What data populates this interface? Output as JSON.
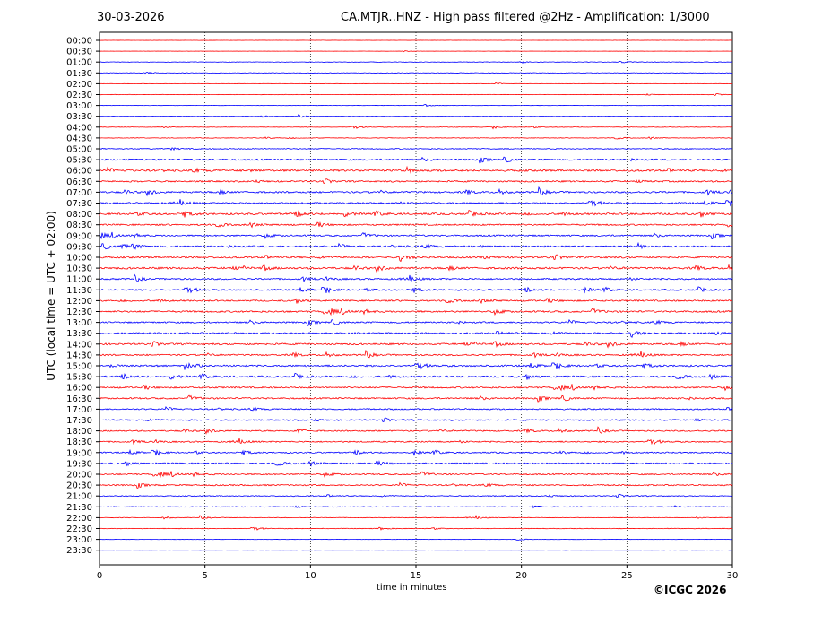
{
  "chart_data": {
    "type": "line",
    "date": "30-03-2026",
    "title": "CA.MTJR..HNZ - High pass filtered @2Hz - Amplification: 1/3000",
    "xlabel": "time in minutes",
    "ylabel": "UTC (local time = UTC + 02:00)",
    "xlim": [
      0,
      30
    ],
    "xticks": [
      0,
      5,
      10,
      15,
      20,
      25,
      30
    ],
    "grid_x": true,
    "rows": [
      "00:00",
      "00:30",
      "01:00",
      "01:30",
      "02:00",
      "02:30",
      "03:00",
      "03:30",
      "04:00",
      "04:30",
      "05:00",
      "05:30",
      "06:00",
      "06:30",
      "07:00",
      "07:30",
      "08:00",
      "08:30",
      "09:00",
      "09:30",
      "10:00",
      "10:30",
      "11:00",
      "11:30",
      "12:00",
      "12:30",
      "13:00",
      "13:30",
      "14:00",
      "14:30",
      "15:00",
      "15:30",
      "16:00",
      "16:30",
      "17:00",
      "17:30",
      "18:00",
      "18:30",
      "19:00",
      "19:30",
      "20:00",
      "20:30",
      "21:00",
      "21:30",
      "22:00",
      "22:30",
      "23:00",
      "23:30"
    ],
    "trace_amplitude": [
      0.1,
      0.1,
      0.25,
      0.3,
      0.15,
      0.2,
      0.15,
      0.2,
      0.25,
      0.3,
      0.5,
      0.8,
      1.0,
      0.8,
      0.9,
      0.8,
      1.0,
      0.8,
      0.8,
      0.9,
      0.9,
      1.0,
      0.8,
      0.8,
      0.8,
      0.9,
      0.8,
      0.9,
      0.9,
      0.8,
      0.9,
      0.9,
      0.8,
      0.8,
      0.7,
      0.7,
      0.7,
      0.7,
      0.7,
      0.8,
      0.7,
      0.7,
      0.5,
      0.4,
      0.3,
      0.3,
      0.15,
      0.1
    ],
    "colors": {
      "odd_hour": "#ff0000",
      "half_hour": "#0000ff"
    },
    "copyright": "©ICGC 2026"
  }
}
